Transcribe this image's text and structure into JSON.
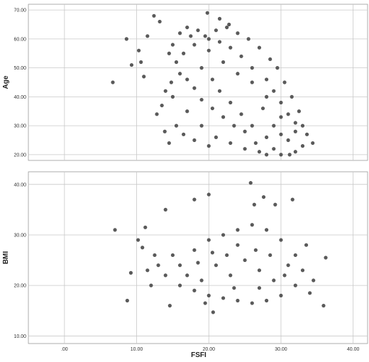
{
  "colors": {
    "marker": "#5a5a5a",
    "grid": "#c8c8c8",
    "frame": "#9a9a9a"
  },
  "chart_data": [
    {
      "type": "scatter",
      "title": "",
      "xlabel": "",
      "ylabel": "Age",
      "xlim": [
        -5,
        42
      ],
      "ylim": [
        18,
        72
      ],
      "grid": true,
      "x_ticks": [
        0,
        10,
        20,
        30,
        40
      ],
      "y_ticks": [
        20,
        30,
        40,
        50,
        60,
        70
      ],
      "y_tick_labels": [
        "20.00",
        "30.00",
        "40.00",
        "50.00",
        "60.00",
        "70.00"
      ],
      "series": [
        {
          "points": [
            [
              6.7,
              45
            ],
            [
              8.6,
              60
            ],
            [
              9.3,
              51
            ],
            [
              10.3,
              56
            ],
            [
              10.6,
              52
            ],
            [
              11.0,
              47
            ],
            [
              11.5,
              61
            ],
            [
              12.4,
              68
            ],
            [
              13.2,
              66
            ],
            [
              13.9,
              28
            ],
            [
              14.5,
              24
            ],
            [
              19.8,
              69
            ],
            [
              21.5,
              67
            ],
            [
              22.8,
              65
            ],
            [
              31.2,
              20
            ],
            [
              33.6,
              27
            ],
            [
              34.4,
              24
            ],
            [
              18.0,
              58
            ],
            [
              20.0,
              56
            ],
            [
              22.0,
              52
            ],
            [
              24.0,
              48
            ],
            [
              26.0,
              45
            ],
            [
              28.0,
              40
            ],
            [
              30.0,
              33
            ],
            [
              32.0,
              28
            ],
            [
              16.0,
              48
            ],
            [
              15.0,
              40
            ],
            [
              17.0,
              35
            ],
            [
              19.0,
              30
            ],
            [
              21.0,
              26
            ],
            [
              23.0,
              24
            ],
            [
              25.0,
              22
            ],
            [
              27.0,
              21
            ],
            [
              29.0,
              22
            ],
            [
              31.0,
              25
            ],
            [
              33.0,
              30
            ],
            [
              32.5,
              35
            ],
            [
              31.5,
              40
            ],
            [
              30.5,
              45
            ],
            [
              29.5,
              50
            ],
            [
              28.5,
              53
            ],
            [
              27.0,
              57
            ],
            [
              25.5,
              60
            ],
            [
              24.0,
              62
            ],
            [
              22.5,
              64
            ],
            [
              21.0,
              63
            ],
            [
              19.5,
              61
            ],
            [
              17.5,
              61
            ],
            [
              16.5,
              55
            ],
            [
              15.5,
              52
            ],
            [
              14.8,
              45
            ],
            [
              14.0,
              42
            ],
            [
              13.5,
              37
            ],
            [
              12.8,
              34
            ],
            [
              15.5,
              30
            ],
            [
              16.5,
              27
            ],
            [
              18.0,
              25
            ],
            [
              20.0,
              23
            ],
            [
              26.0,
              30
            ],
            [
              24.5,
              34
            ],
            [
              23.0,
              38
            ],
            [
              21.5,
              42
            ],
            [
              20.5,
              46
            ],
            [
              19.0,
              50
            ],
            [
              27.5,
              36
            ],
            [
              29.0,
              30
            ],
            [
              30.0,
              27
            ],
            [
              28.0,
              26
            ],
            [
              26.5,
              24
            ],
            [
              25.0,
              28
            ],
            [
              23.5,
              30
            ],
            [
              22.0,
              33
            ],
            [
              20.5,
              36
            ],
            [
              19.0,
              39
            ],
            [
              18.0,
              43
            ],
            [
              17.0,
              46
            ],
            [
              26.0,
              50
            ],
            [
              24.5,
              54
            ],
            [
              23.0,
              57
            ],
            [
              21.5,
              59
            ],
            [
              20.0,
              60
            ],
            [
              18.5,
              63
            ],
            [
              17.0,
              64
            ],
            [
              16.0,
              62
            ],
            [
              15.0,
              58
            ],
            [
              14.5,
              55
            ],
            [
              28.0,
              46
            ],
            [
              29.0,
              42
            ],
            [
              30.0,
              38
            ],
            [
              31.0,
              34
            ],
            [
              32.0,
              31
            ],
            [
              33.0,
              23
            ],
            [
              32.0,
              21
            ],
            [
              30.0,
              20
            ],
            [
              28.0,
              20
            ]
          ]
        }
      ]
    },
    {
      "type": "scatter",
      "title": "",
      "xlabel": "FSFI",
      "ylabel": "BMI",
      "xlim": [
        -5,
        42
      ],
      "ylim": [
        8.5,
        42.5
      ],
      "grid": true,
      "x_ticks": [
        0,
        10,
        20,
        30,
        40
      ],
      "x_tick_labels": [
        ".00",
        "10.00",
        "20.00",
        "30.00",
        "40.00"
      ],
      "y_ticks": [
        10,
        20,
        30,
        40
      ],
      "y_tick_labels": [
        "10.00",
        "20.00",
        "30.00",
        "40.00"
      ],
      "series": [
        {
          "points": [
            [
              7.0,
              31.0
            ],
            [
              8.7,
              17.0
            ],
            [
              9.2,
              22.5
            ],
            [
              10.2,
              29.0
            ],
            [
              10.8,
              27.5
            ],
            [
              11.2,
              31.5
            ],
            [
              12.0,
              20.0
            ],
            [
              14.0,
              35.0
            ],
            [
              14.6,
              16.0
            ],
            [
              18.0,
              37.0
            ],
            [
              20.0,
              38.0
            ],
            [
              20.6,
              14.7
            ],
            [
              25.8,
              40.3
            ],
            [
              26.3,
              36.0
            ],
            [
              27.6,
              37.5
            ],
            [
              29.2,
              36.0
            ],
            [
              31.6,
              37.0
            ],
            [
              34.5,
              21.0
            ],
            [
              35.9,
              16.0
            ],
            [
              36.2,
              25.5
            ],
            [
              16.0,
              24.0
            ],
            [
              18.0,
              27.0
            ],
            [
              20.0,
              29.0
            ],
            [
              22.0,
              30.0
            ],
            [
              24.0,
              31.0
            ],
            [
              26.0,
              32.0
            ],
            [
              28.0,
              31.0
            ],
            [
              30.0,
              29.0
            ],
            [
              32.0,
              26.0
            ],
            [
              33.0,
              23.0
            ],
            [
              32.0,
              20.0
            ],
            [
              30.0,
              18.0
            ],
            [
              28.0,
              17.0
            ],
            [
              26.0,
              16.5
            ],
            [
              24.0,
              17.0
            ],
            [
              22.0,
              17.5
            ],
            [
              20.0,
              18.0
            ],
            [
              18.0,
              19.0
            ],
            [
              16.0,
              20.0
            ],
            [
              14.0,
              22.0
            ],
            [
              13.0,
              24.0
            ],
            [
              15.0,
              26.0
            ],
            [
              17.0,
              22.0
            ],
            [
              19.0,
              21.0
            ],
            [
              21.0,
              24.0
            ],
            [
              23.0,
              22.0
            ],
            [
              25.0,
              25.0
            ],
            [
              27.0,
              23.0
            ],
            [
              29.0,
              21.0
            ],
            [
              31.0,
              24.0
            ],
            [
              24.0,
              28.0
            ],
            [
              26.5,
              27.0
            ],
            [
              28.5,
              26.0
            ],
            [
              22.5,
              26.0
            ],
            [
              20.5,
              26.5
            ],
            [
              18.5,
              24.5
            ],
            [
              30.5,
              22.0
            ],
            [
              27.0,
              19.5
            ],
            [
              23.5,
              19.5
            ],
            [
              19.5,
              16.5
            ],
            [
              33.5,
              28.0
            ],
            [
              34.0,
              18.5
            ],
            [
              12.5,
              26.0
            ],
            [
              11.5,
              23.0
            ]
          ]
        }
      ]
    }
  ]
}
